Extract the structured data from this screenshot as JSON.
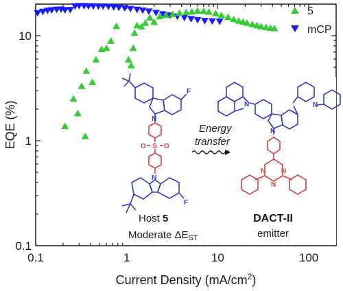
{
  "chart_data": {
    "type": "scatter",
    "xscale": "log",
    "yscale": "log",
    "xlim": [
      0.1,
      200
    ],
    "ylim": [
      0.1,
      20
    ],
    "xlabel": "Current Density (mA/cm²)",
    "ylabel": "EQE (%)",
    "x_ticks": [
      "0.1",
      "1",
      "10",
      "100"
    ],
    "y_ticks": [
      "0.1",
      "1",
      "10"
    ],
    "legend_position": "top-right",
    "series": [
      {
        "name": "5",
        "marker": "triangle-up",
        "color": "#33cc33",
        "points": [
          [
            0.21,
            1.37
          ],
          [
            0.29,
            1.82
          ],
          [
            0.26,
            2.5
          ],
          [
            0.32,
            3.3
          ],
          [
            0.36,
            4.6
          ],
          [
            0.35,
            1.1
          ],
          [
            0.42,
            3.6
          ],
          [
            0.46,
            5.9
          ],
          [
            0.53,
            7.4
          ],
          [
            0.6,
            7.6
          ],
          [
            0.67,
            8.9
          ],
          [
            0.77,
            12.3
          ],
          [
            1.05,
            5.9
          ],
          [
            1.12,
            5.2
          ],
          [
            1.18,
            7.6
          ],
          [
            1.22,
            10.6
          ],
          [
            1.3,
            12.5
          ],
          [
            1.45,
            12.2
          ],
          [
            1.6,
            13.2
          ],
          [
            1.8,
            14.8
          ],
          [
            2.0,
            13.5
          ],
          [
            2.3,
            15.2
          ],
          [
            2.7,
            15.7
          ],
          [
            3.2,
            16.0
          ],
          [
            3.8,
            16.4
          ],
          [
            4.5,
            16.7
          ],
          [
            5.2,
            16.9
          ],
          [
            6.0,
            17.2
          ],
          [
            7.0,
            17.1
          ],
          [
            8.0,
            16.8
          ],
          [
            9.5,
            16.3
          ],
          [
            11.0,
            15.6
          ],
          [
            13.0,
            15.0
          ],
          [
            15.0,
            14.3
          ],
          [
            17.0,
            13.8
          ],
          [
            19.0,
            13.5
          ],
          [
            21.0,
            13.2
          ],
          [
            24.0,
            12.8
          ],
          [
            27.0,
            12.5
          ],
          [
            30.0,
            12.2
          ],
          [
            34.0,
            12.0
          ],
          [
            38.0,
            11.8
          ],
          [
            42.0,
            11.7
          ]
        ]
      },
      {
        "name": "mCP",
        "marker": "triangle-down",
        "color": "#1a1aff",
        "points": [
          [
            0.105,
            16.5
          ],
          [
            0.12,
            17.0
          ],
          [
            0.135,
            17.4
          ],
          [
            0.15,
            17.6
          ],
          [
            0.17,
            17.8
          ],
          [
            0.19,
            17.9
          ],
          [
            0.21,
            17.6
          ],
          [
            0.24,
            17.7
          ],
          [
            0.27,
            19.2
          ],
          [
            0.3,
            19.3
          ],
          [
            0.34,
            19.3
          ],
          [
            0.38,
            19.2
          ],
          [
            0.43,
            19.2
          ],
          [
            0.49,
            19.1
          ],
          [
            0.55,
            19.1
          ],
          [
            0.63,
            19.0
          ],
          [
            0.72,
            18.8
          ],
          [
            0.82,
            18.6
          ],
          [
            0.95,
            18.4
          ],
          [
            1.1,
            18.1
          ],
          [
            1.3,
            17.8
          ],
          [
            1.5,
            17.5
          ],
          [
            1.75,
            17.1
          ],
          [
            2.1,
            16.6
          ],
          [
            2.5,
            16.1
          ],
          [
            3.0,
            15.7
          ],
          [
            3.6,
            15.3
          ],
          [
            4.3,
            14.9
          ],
          [
            5.1,
            14.5
          ],
          [
            6.0,
            14.2
          ],
          [
            7.2,
            13.9
          ],
          [
            8.7,
            13.8
          ],
          [
            10.5,
            13.7
          ]
        ]
      }
    ]
  },
  "inset": {
    "label_energy": "Energy",
    "label_transfer": "transfer",
    "host_prefix": "Host ",
    "host_number": "5",
    "moderate_text": "Moderate ΔE",
    "moderate_sub": "ST",
    "emitter_name": "DACT-II",
    "emitter_word": "emitter",
    "atom_F": "F",
    "atom_N": "N",
    "atom_S": "S",
    "atom_O": "O",
    "color_host": "#d94040",
    "color_donor": "#3434c8",
    "color_acceptor": "#d94040"
  }
}
